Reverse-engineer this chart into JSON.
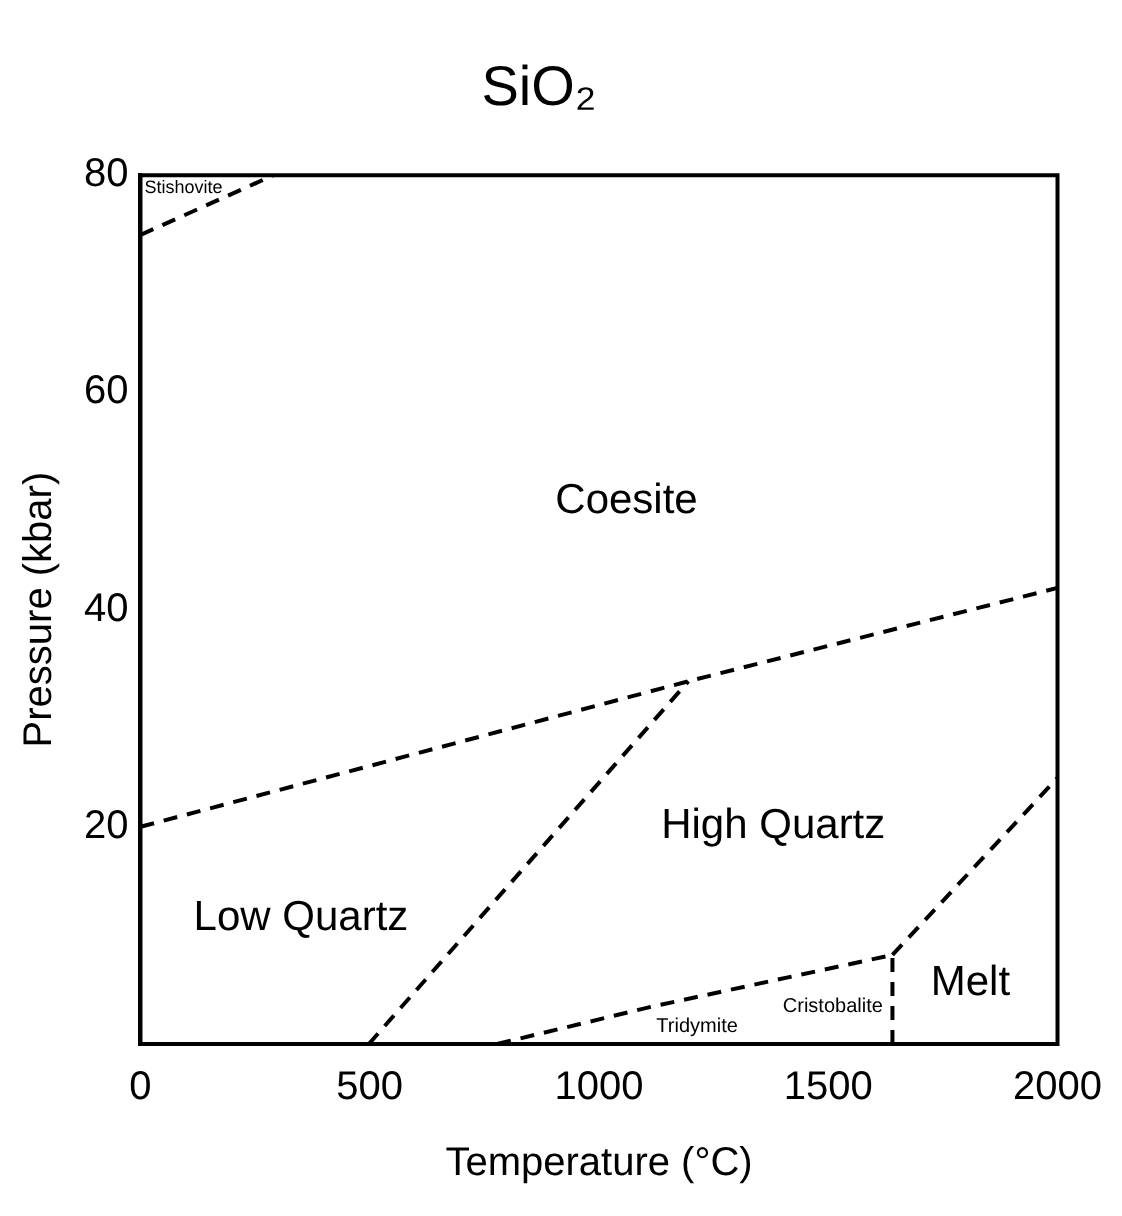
{
  "chart_data": {
    "type": "line",
    "title": "SiO₂",
    "xlabel": "Temperature (°C)",
    "ylabel": "Pressure (kbar)",
    "xlim": [
      0,
      2000
    ],
    "xticks": [
      0,
      500,
      1000,
      1500,
      2000
    ],
    "ylim": [
      0,
      80
    ],
    "yticks": [
      20,
      40,
      60,
      80
    ],
    "series": [
      {
        "color": "#000000",
        "x": [
          0,
          290
        ],
        "values": [
          74.5,
          80
        ]
      },
      {
        "color": "#000000",
        "x": [
          0,
          1195,
          2000
        ],
        "values": [
          20,
          33.4,
          42
        ]
      },
      {
        "color": "#000000",
        "x": [
          498,
          1195
        ],
        "values": [
          0,
          33.4
        ]
      },
      {
        "color": "#000000",
        "x": [
          778,
          1111,
          1640
        ],
        "values": [
          0,
          3.4,
          8.2
        ]
      },
      {
        "color": "#000000",
        "x": [
          1640,
          1640
        ],
        "values": [
          0,
          8.2
        ]
      },
      {
        "color": "#000000",
        "x": [
          1640,
          2000
        ],
        "values": [
          8.2,
          24.5
        ]
      }
    ],
    "annotations": [
      "Stishovite",
      "Coesite",
      "High Quartz",
      "Low Quartz",
      "Melt",
      "Cristobalite",
      "Tridymite"
    ],
    "legend": false,
    "marker": "none",
    "line_style": "dashed"
  }
}
